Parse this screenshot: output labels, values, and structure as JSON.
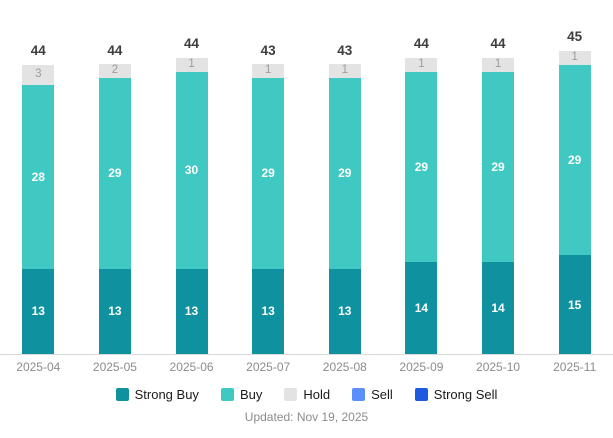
{
  "chart_data": {
    "type": "bar",
    "stacked": true,
    "title": "",
    "xlabel": "",
    "ylabel": "",
    "ylim": [
      0,
      45
    ],
    "grid": false,
    "legend_position": "bottom",
    "categories": [
      "2025-04",
      "2025-05",
      "2025-06",
      "2025-07",
      "2025-08",
      "2025-09",
      "2025-10",
      "2025-11"
    ],
    "series": [
      {
        "name": "Strong Buy",
        "color": "#10919f",
        "values": [
          13,
          13,
          13,
          13,
          13,
          14,
          14,
          15
        ]
      },
      {
        "name": "Buy",
        "color": "#3fc9c2",
        "values": [
          28,
          29,
          30,
          29,
          29,
          29,
          29,
          29
        ]
      },
      {
        "name": "Hold",
        "color": "#e3e3e3",
        "values": [
          3,
          2,
          1,
          1,
          1,
          1,
          1,
          1
        ]
      },
      {
        "name": "Sell",
        "color": "#5b8ff9",
        "values": [
          0,
          0,
          0,
          0,
          0,
          0,
          0,
          0
        ]
      },
      {
        "name": "Strong Sell",
        "color": "#1e5ae0",
        "values": [
          0,
          0,
          0,
          0,
          0,
          0,
          0,
          0
        ]
      }
    ],
    "totals": [
      44,
      44,
      44,
      43,
      43,
      44,
      44,
      45
    ]
  },
  "style": {
    "hold_label_color": "#9b9b9b",
    "total_label_color": "#3d3d3d",
    "axis_label_color": "#8c8c8c",
    "axis_line_color": "#d9d9d9"
  },
  "footer": {
    "updated": "Updated: Nov 19, 2025"
  }
}
